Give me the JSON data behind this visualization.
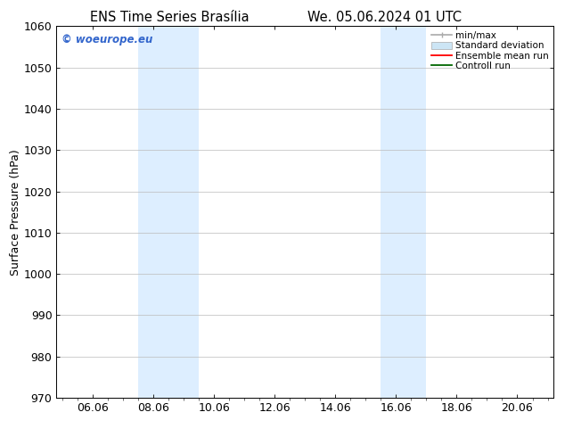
{
  "title_left": "ENS Time Series Brasília",
  "title_right": "We. 05.06.2024 01 UTC",
  "ylabel": "Surface Pressure (hPa)",
  "ylim": [
    970,
    1060
  ],
  "yticks": [
    970,
    980,
    990,
    1000,
    1010,
    1020,
    1030,
    1040,
    1050,
    1060
  ],
  "xtick_labels": [
    "06.06",
    "08.06",
    "10.06",
    "12.06",
    "14.06",
    "16.06",
    "18.06",
    "20.06"
  ],
  "xtick_positions": [
    1,
    3,
    5,
    7,
    9,
    11,
    13,
    15
  ],
  "xlim": [
    -0.2,
    16.2
  ],
  "shaded_bands": [
    {
      "x_start": 2.5,
      "x_end": 4.5
    },
    {
      "x_start": 10.5,
      "x_end": 12.0
    }
  ],
  "shaded_color": "#ddeeff",
  "watermark_text": "© woeurope.eu",
  "watermark_color": "#3366cc",
  "legend_items": [
    {
      "label": "min/max",
      "color": "#aaaaaa",
      "lw": 1.2
    },
    {
      "label": "Standard deviation",
      "color": "#ccddee",
      "lw": 8
    },
    {
      "label": "Ensemble mean run",
      "color": "#ff0000",
      "lw": 1.5
    },
    {
      "label": "Controll run",
      "color": "#006600",
      "lw": 1.5
    }
  ],
  "bg_color": "#ffffff",
  "spine_color": "#000000",
  "tick_color": "#000000",
  "font_size": 9,
  "title_font_size": 10.5,
  "watermark_fontsize": 8.5
}
